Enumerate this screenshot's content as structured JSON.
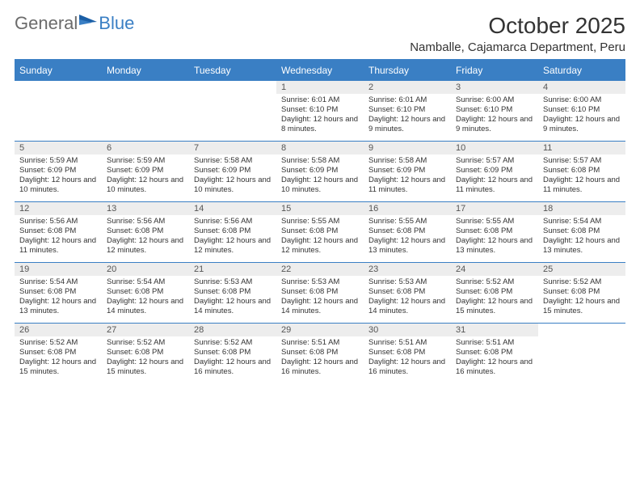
{
  "logo": {
    "text1": "General",
    "text2": "Blue"
  },
  "title": "October 2025",
  "location": "Namballe, Cajamarca Department, Peru",
  "colors": {
    "accent": "#3a7fc4",
    "header_text": "#ffffff",
    "daynum_bg": "#ededed",
    "body_text": "#333333",
    "logo_gray": "#6b6b6b"
  },
  "fonts": {
    "title_size": 28,
    "location_size": 15,
    "dayheader_size": 12,
    "cell_size": 9.5
  },
  "day_headers": [
    "Sunday",
    "Monday",
    "Tuesday",
    "Wednesday",
    "Thursday",
    "Friday",
    "Saturday"
  ],
  "weeks": [
    [
      {
        "n": "",
        "sr": "",
        "ss": "",
        "dl": ""
      },
      {
        "n": "",
        "sr": "",
        "ss": "",
        "dl": ""
      },
      {
        "n": "",
        "sr": "",
        "ss": "",
        "dl": ""
      },
      {
        "n": "1",
        "sr": "Sunrise: 6:01 AM",
        "ss": "Sunset: 6:10 PM",
        "dl": "Daylight: 12 hours and 8 minutes."
      },
      {
        "n": "2",
        "sr": "Sunrise: 6:01 AM",
        "ss": "Sunset: 6:10 PM",
        "dl": "Daylight: 12 hours and 9 minutes."
      },
      {
        "n": "3",
        "sr": "Sunrise: 6:00 AM",
        "ss": "Sunset: 6:10 PM",
        "dl": "Daylight: 12 hours and 9 minutes."
      },
      {
        "n": "4",
        "sr": "Sunrise: 6:00 AM",
        "ss": "Sunset: 6:10 PM",
        "dl": "Daylight: 12 hours and 9 minutes."
      }
    ],
    [
      {
        "n": "5",
        "sr": "Sunrise: 5:59 AM",
        "ss": "Sunset: 6:09 PM",
        "dl": "Daylight: 12 hours and 10 minutes."
      },
      {
        "n": "6",
        "sr": "Sunrise: 5:59 AM",
        "ss": "Sunset: 6:09 PM",
        "dl": "Daylight: 12 hours and 10 minutes."
      },
      {
        "n": "7",
        "sr": "Sunrise: 5:58 AM",
        "ss": "Sunset: 6:09 PM",
        "dl": "Daylight: 12 hours and 10 minutes."
      },
      {
        "n": "8",
        "sr": "Sunrise: 5:58 AM",
        "ss": "Sunset: 6:09 PM",
        "dl": "Daylight: 12 hours and 10 minutes."
      },
      {
        "n": "9",
        "sr": "Sunrise: 5:58 AM",
        "ss": "Sunset: 6:09 PM",
        "dl": "Daylight: 12 hours and 11 minutes."
      },
      {
        "n": "10",
        "sr": "Sunrise: 5:57 AM",
        "ss": "Sunset: 6:09 PM",
        "dl": "Daylight: 12 hours and 11 minutes."
      },
      {
        "n": "11",
        "sr": "Sunrise: 5:57 AM",
        "ss": "Sunset: 6:08 PM",
        "dl": "Daylight: 12 hours and 11 minutes."
      }
    ],
    [
      {
        "n": "12",
        "sr": "Sunrise: 5:56 AM",
        "ss": "Sunset: 6:08 PM",
        "dl": "Daylight: 12 hours and 11 minutes."
      },
      {
        "n": "13",
        "sr": "Sunrise: 5:56 AM",
        "ss": "Sunset: 6:08 PM",
        "dl": "Daylight: 12 hours and 12 minutes."
      },
      {
        "n": "14",
        "sr": "Sunrise: 5:56 AM",
        "ss": "Sunset: 6:08 PM",
        "dl": "Daylight: 12 hours and 12 minutes."
      },
      {
        "n": "15",
        "sr": "Sunrise: 5:55 AM",
        "ss": "Sunset: 6:08 PM",
        "dl": "Daylight: 12 hours and 12 minutes."
      },
      {
        "n": "16",
        "sr": "Sunrise: 5:55 AM",
        "ss": "Sunset: 6:08 PM",
        "dl": "Daylight: 12 hours and 13 minutes."
      },
      {
        "n": "17",
        "sr": "Sunrise: 5:55 AM",
        "ss": "Sunset: 6:08 PM",
        "dl": "Daylight: 12 hours and 13 minutes."
      },
      {
        "n": "18",
        "sr": "Sunrise: 5:54 AM",
        "ss": "Sunset: 6:08 PM",
        "dl": "Daylight: 12 hours and 13 minutes."
      }
    ],
    [
      {
        "n": "19",
        "sr": "Sunrise: 5:54 AM",
        "ss": "Sunset: 6:08 PM",
        "dl": "Daylight: 12 hours and 13 minutes."
      },
      {
        "n": "20",
        "sr": "Sunrise: 5:54 AM",
        "ss": "Sunset: 6:08 PM",
        "dl": "Daylight: 12 hours and 14 minutes."
      },
      {
        "n": "21",
        "sr": "Sunrise: 5:53 AM",
        "ss": "Sunset: 6:08 PM",
        "dl": "Daylight: 12 hours and 14 minutes."
      },
      {
        "n": "22",
        "sr": "Sunrise: 5:53 AM",
        "ss": "Sunset: 6:08 PM",
        "dl": "Daylight: 12 hours and 14 minutes."
      },
      {
        "n": "23",
        "sr": "Sunrise: 5:53 AM",
        "ss": "Sunset: 6:08 PM",
        "dl": "Daylight: 12 hours and 14 minutes."
      },
      {
        "n": "24",
        "sr": "Sunrise: 5:52 AM",
        "ss": "Sunset: 6:08 PM",
        "dl": "Daylight: 12 hours and 15 minutes."
      },
      {
        "n": "25",
        "sr": "Sunrise: 5:52 AM",
        "ss": "Sunset: 6:08 PM",
        "dl": "Daylight: 12 hours and 15 minutes."
      }
    ],
    [
      {
        "n": "26",
        "sr": "Sunrise: 5:52 AM",
        "ss": "Sunset: 6:08 PM",
        "dl": "Daylight: 12 hours and 15 minutes."
      },
      {
        "n": "27",
        "sr": "Sunrise: 5:52 AM",
        "ss": "Sunset: 6:08 PM",
        "dl": "Daylight: 12 hours and 15 minutes."
      },
      {
        "n": "28",
        "sr": "Sunrise: 5:52 AM",
        "ss": "Sunset: 6:08 PM",
        "dl": "Daylight: 12 hours and 16 minutes."
      },
      {
        "n": "29",
        "sr": "Sunrise: 5:51 AM",
        "ss": "Sunset: 6:08 PM",
        "dl": "Daylight: 12 hours and 16 minutes."
      },
      {
        "n": "30",
        "sr": "Sunrise: 5:51 AM",
        "ss": "Sunset: 6:08 PM",
        "dl": "Daylight: 12 hours and 16 minutes."
      },
      {
        "n": "31",
        "sr": "Sunrise: 5:51 AM",
        "ss": "Sunset: 6:08 PM",
        "dl": "Daylight: 12 hours and 16 minutes."
      },
      {
        "n": "",
        "sr": "",
        "ss": "",
        "dl": ""
      }
    ]
  ]
}
